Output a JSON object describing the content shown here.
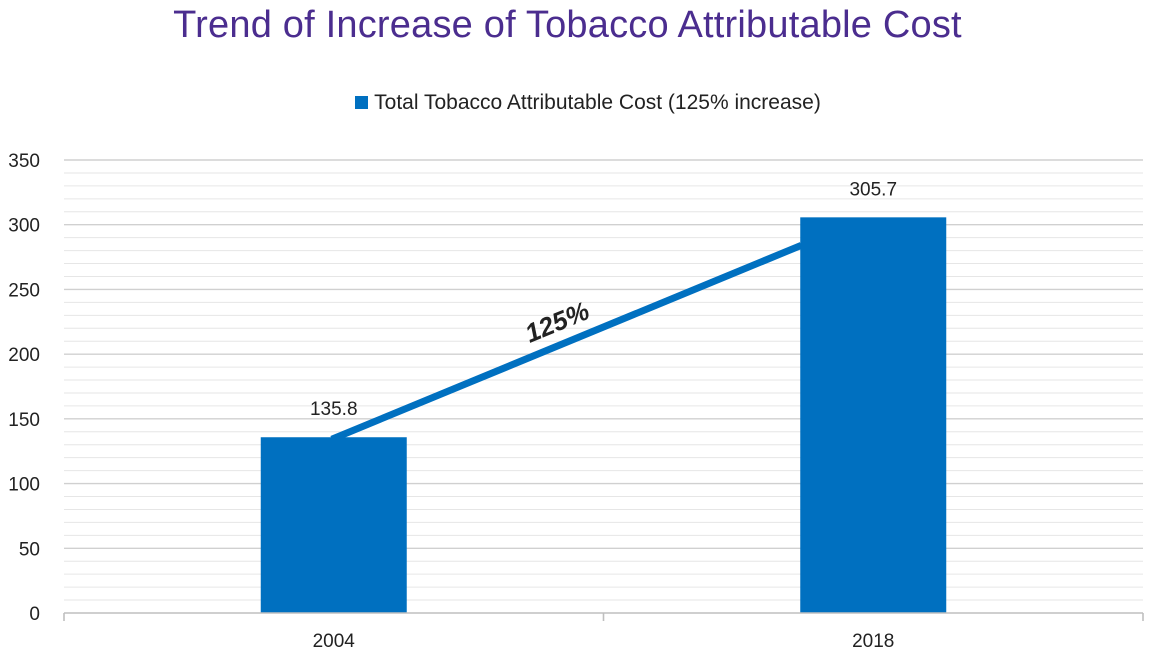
{
  "chart_data": {
    "type": "bar",
    "title": "Trend of Increase of Tobacco Attributable Cost",
    "categories": [
      "2004",
      "2018"
    ],
    "series": [
      {
        "name": "Total Tobacco Attributable Cost (125% increase)",
        "values": [
          135.8,
          305.7
        ]
      }
    ],
    "data_labels": [
      "135.8",
      "305.7"
    ],
    "ylim": [
      0,
      350
    ],
    "yticks": [
      0,
      50,
      100,
      150,
      200,
      250,
      300,
      350
    ],
    "grid": true,
    "legend": "top-center",
    "annotation": {
      "text": "125%"
    },
    "colors": {
      "bar": "#0070c0",
      "title": "#4b2d8f",
      "gridline": "#d0d0d0",
      "axis": "#bfbfbf"
    }
  }
}
